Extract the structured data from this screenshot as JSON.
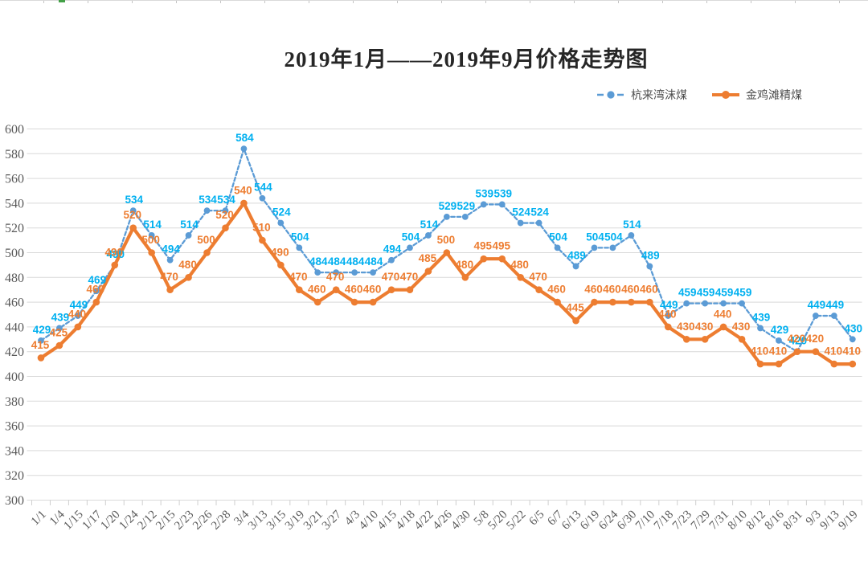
{
  "page": {
    "background": "#FFFFFF",
    "top_strip": {
      "line_color": "#D9D9D9",
      "tick_color": "#C4C4C4",
      "selection_mark_color": "#43A047"
    }
  },
  "chart_data": {
    "type": "line",
    "title": "2019年1月——2019年9月价格走势图",
    "categories": [
      "1/1",
      "1/4",
      "1/15",
      "1/17",
      "1/20",
      "1/24",
      "2/12",
      "2/15",
      "2/23",
      "2/26",
      "2/28",
      "3/4",
      "3/13",
      "3/15",
      "3/19",
      "3/21",
      "3/27",
      "4/3",
      "4/10",
      "4/15",
      "4/18",
      "4/22",
      "4/26",
      "4/30",
      "5/8",
      "5/20",
      "5/22",
      "6/5",
      "6/7",
      "6/13",
      "6/19",
      "6/24",
      "6/30",
      "7/10",
      "7/18",
      "7/23",
      "7/29",
      "7/31",
      "8/10",
      "8/12",
      "8/16",
      "8/31",
      "9/3",
      "9/13",
      "9/19"
    ],
    "series": [
      {
        "name": "杭来湾沫煤",
        "line_style": "dashed",
        "marker": "circle",
        "line_color": "#5B9BD5",
        "label_color": "#00B0F0",
        "values": [
          429,
          439,
          449,
          469,
          490,
          534,
          514,
          494,
          514,
          534,
          534,
          584,
          544,
          524,
          504,
          484,
          484,
          484,
          484,
          494,
          504,
          514,
          529,
          529,
          539,
          539,
          524,
          524,
          504,
          489,
          504,
          504,
          514,
          489,
          449,
          459,
          459,
          459,
          459,
          439,
          429,
          420,
          449,
          449,
          430
        ]
      },
      {
        "name": "金鸡滩精煤",
        "line_style": "solid",
        "marker": "circle",
        "line_color": "#ED7D31",
        "label_color": "#ED7D31",
        "values": [
          415,
          425,
          440,
          460,
          490,
          520,
          500,
          470,
          480,
          500,
          520,
          540,
          510,
          490,
          470,
          460,
          470,
          460,
          460,
          470,
          470,
          485,
          500,
          480,
          495,
          495,
          480,
          470,
          460,
          445,
          460,
          460,
          460,
          460,
          440,
          430,
          430,
          440,
          430,
          410,
          410,
          420,
          420,
          410,
          410
        ]
      }
    ],
    "ylim": [
      300,
      600
    ],
    "ytick_step": 20,
    "yticks": [
      600,
      580,
      560,
      540,
      520,
      500,
      480,
      460,
      440,
      420,
      400,
      380,
      360,
      340,
      320,
      300
    ],
    "xlabel": "",
    "ylabel": "",
    "grid": true,
    "grid_color": "#D9D9D9",
    "axis_text_color": "#595959",
    "data_labels": true,
    "legend_position": "top-right",
    "x_label_rotation_deg": -45
  }
}
